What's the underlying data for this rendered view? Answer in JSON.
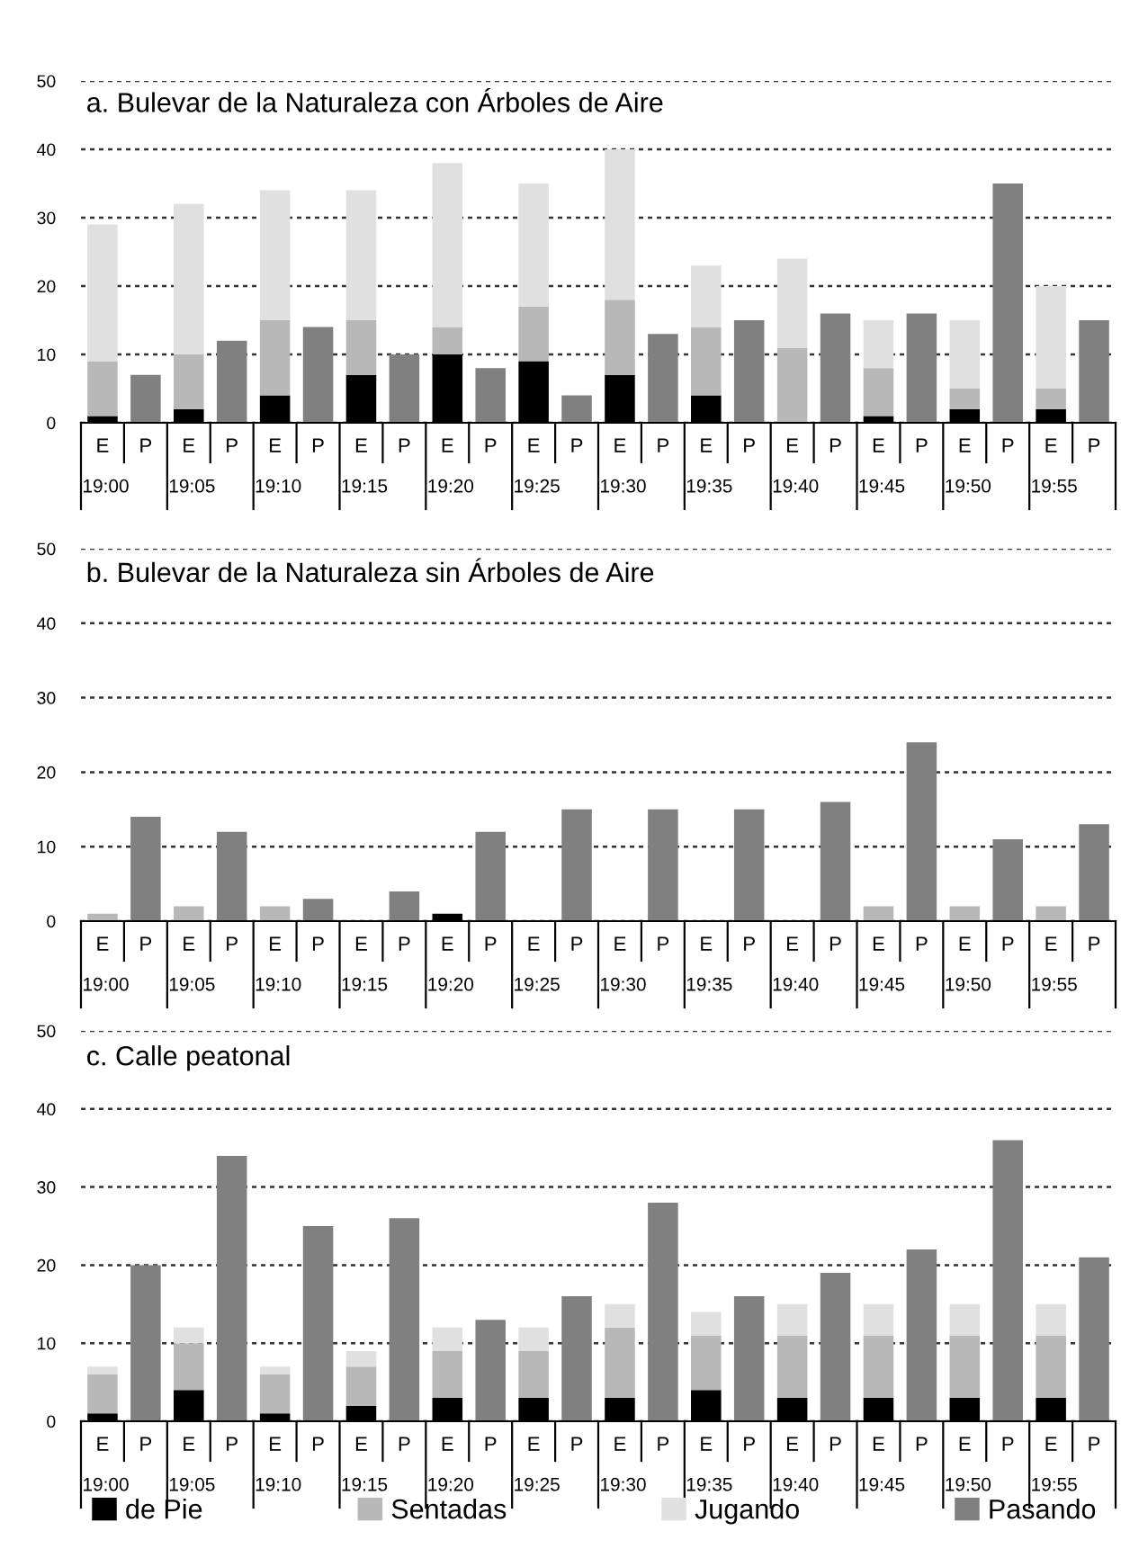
{
  "chart_data": [
    {
      "type": "bar",
      "title": "a. Bulevar de la Naturaleza con Árboles de Aire",
      "stacked": true,
      "categories": [
        "E",
        "P",
        "E",
        "P",
        "E",
        "P",
        "E",
        "P",
        "E",
        "P",
        "E",
        "P",
        "E",
        "P",
        "E",
        "P",
        "E",
        "P",
        "E",
        "P",
        "E",
        "P",
        "E",
        "P"
      ],
      "annotations": [
        "19:00",
        "19:05",
        "19:10",
        "19:15",
        "19:20",
        "19:25",
        "19:30",
        "19:35",
        "19:40",
        "19:45",
        "19:50",
        "19:55"
      ],
      "series": [
        {
          "color": "#000000",
          "values": [
            1,
            null,
            2,
            null,
            4,
            null,
            7,
            null,
            10,
            null,
            9,
            null,
            7,
            null,
            4,
            null,
            0,
            null,
            1,
            null,
            2,
            null,
            2,
            null
          ]
        },
        {
          "color": "#b8b8b8",
          "values": [
            8,
            null,
            8,
            null,
            11,
            null,
            8,
            null,
            4,
            null,
            8,
            null,
            11,
            null,
            10,
            null,
            11,
            null,
            7,
            null,
            3,
            null,
            3,
            null
          ]
        },
        {
          "color": "#e0e0e0",
          "values": [
            20,
            null,
            22,
            null,
            19,
            null,
            19,
            null,
            24,
            null,
            18,
            null,
            22,
            null,
            9,
            null,
            13,
            null,
            7,
            null,
            10,
            null,
            15,
            null
          ]
        },
        {
          "color": "#808080",
          "values": [
            null,
            7,
            null,
            12,
            null,
            14,
            null,
            10,
            null,
            8,
            null,
            4,
            null,
            13,
            null,
            15,
            null,
            16,
            null,
            16,
            null,
            35,
            null,
            15
          ]
        }
      ],
      "ylim": [
        0,
        50
      ],
      "yticks": [
        0,
        10,
        20,
        30,
        40,
        50
      ],
      "grid": "y"
    },
    {
      "type": "bar",
      "title": "b. Bulevar de la Naturaleza sin Árboles de Aire",
      "stacked": true,
      "categories": [
        "E",
        "P",
        "E",
        "P",
        "E",
        "P",
        "E",
        "P",
        "E",
        "P",
        "E",
        "P",
        "E",
        "P",
        "E",
        "P",
        "E",
        "P",
        "E",
        "P",
        "E",
        "P",
        "E",
        "P"
      ],
      "annotations": [
        "19:00",
        "19:05",
        "19:10",
        "19:15",
        "19:20",
        "19:25",
        "19:30",
        "19:35",
        "19:40",
        "19:45",
        "19:50",
        "19:55"
      ],
      "series": [
        {
          "color": "#000000",
          "values": [
            0,
            null,
            0,
            null,
            0,
            null,
            0,
            null,
            1,
            null,
            0,
            null,
            0,
            null,
            0,
            null,
            0,
            null,
            0,
            null,
            0,
            null,
            0,
            null
          ]
        },
        {
          "color": "#b8b8b8",
          "values": [
            1,
            null,
            2,
            null,
            2,
            null,
            0,
            null,
            0,
            null,
            0,
            null,
            0,
            null,
            0,
            null,
            0,
            null,
            2,
            null,
            2,
            null,
            2,
            null
          ]
        },
        {
          "color": "#e0e0e0",
          "values": [
            0,
            null,
            0,
            null,
            0,
            null,
            0,
            null,
            0,
            null,
            0,
            null,
            0,
            null,
            0,
            null,
            0,
            null,
            0,
            null,
            0,
            null,
            0,
            null
          ]
        },
        {
          "color": "#808080",
          "values": [
            null,
            14,
            null,
            12,
            null,
            3,
            null,
            4,
            null,
            12,
            null,
            15,
            null,
            15,
            null,
            15,
            null,
            16,
            null,
            24,
            null,
            11,
            null,
            13
          ]
        }
      ],
      "ylim": [
        0,
        50
      ],
      "yticks": [
        0,
        10,
        20,
        30,
        40,
        50
      ],
      "grid": "y"
    },
    {
      "type": "bar",
      "title": "c. Calle peatonal",
      "stacked": true,
      "categories": [
        "E",
        "P",
        "E",
        "P",
        "E",
        "P",
        "E",
        "P",
        "E",
        "P",
        "E",
        "P",
        "E",
        "P",
        "E",
        "P",
        "E",
        "P",
        "E",
        "P",
        "E",
        "P",
        "E",
        "P"
      ],
      "annotations": [
        "19:00",
        "19:05",
        "19:10",
        "19:15",
        "19:20",
        "19:25",
        "19:30",
        "19:35",
        "19:40",
        "19:45",
        "19:50",
        "19:55"
      ],
      "series": [
        {
          "name": "de Pie",
          "color": "#000000",
          "values": [
            1,
            null,
            4,
            null,
            1,
            null,
            2,
            null,
            3,
            null,
            3,
            null,
            3,
            null,
            4,
            null,
            3,
            null,
            3,
            null,
            3,
            null,
            3,
            null
          ]
        },
        {
          "name": "Sentadas",
          "color": "#b8b8b8",
          "values": [
            5,
            null,
            6,
            null,
            5,
            null,
            5,
            null,
            6,
            null,
            6,
            null,
            9,
            null,
            7,
            null,
            8,
            null,
            8,
            null,
            8,
            null,
            8,
            null
          ]
        },
        {
          "name": "Jugando",
          "color": "#e0e0e0",
          "values": [
            1,
            null,
            2,
            null,
            1,
            null,
            2,
            null,
            3,
            null,
            3,
            null,
            3,
            null,
            3,
            null,
            4,
            null,
            4,
            null,
            4,
            null,
            4,
            null
          ]
        },
        {
          "name": "Pasando",
          "color": "#808080",
          "values": [
            null,
            20,
            null,
            34,
            null,
            25,
            null,
            26,
            null,
            13,
            null,
            16,
            null,
            28,
            null,
            16,
            null,
            19,
            null,
            22,
            null,
            36,
            null,
            21
          ]
        }
      ],
      "ylim": [
        0,
        50
      ],
      "yticks": [
        0,
        10,
        20,
        30,
        40,
        50
      ],
      "grid": "y",
      "legend": "bottom"
    }
  ]
}
